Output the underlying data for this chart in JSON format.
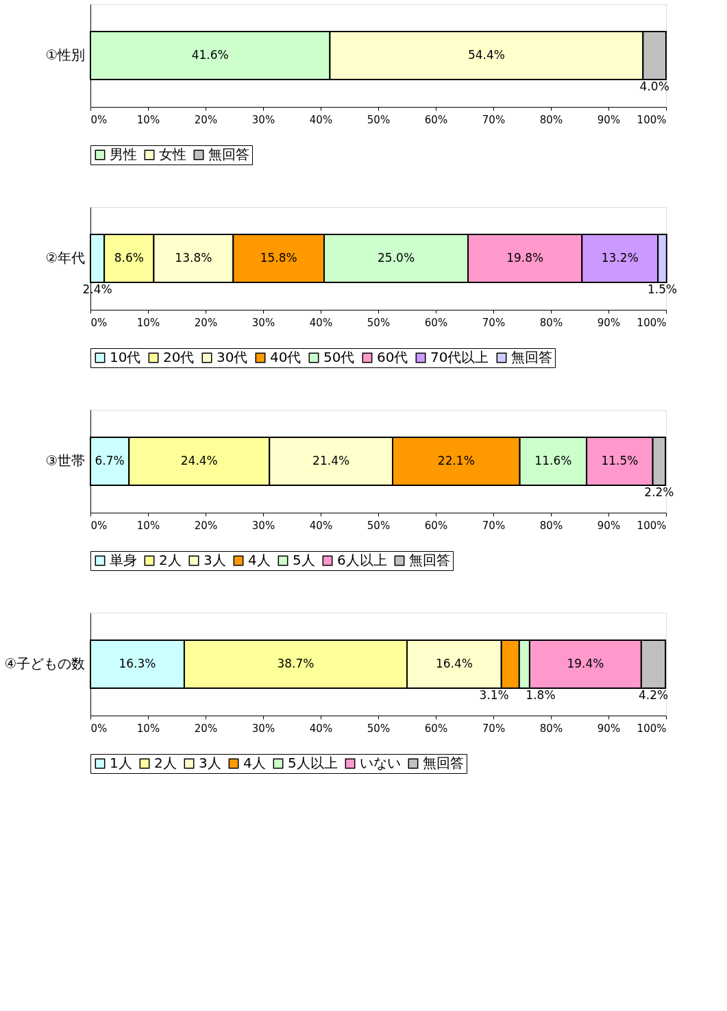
{
  "chart_data": [
    {
      "type": "bar",
      "orientation": "horizontal",
      "stacked": true,
      "categories": [
        "①性別"
      ],
      "xlim": [
        0,
        100
      ],
      "xticks": [
        {
          "value": 0,
          "label": "0%"
        },
        {
          "value": 10,
          "label": "10%"
        },
        {
          "value": 20,
          "label": "20%"
        },
        {
          "value": 30,
          "label": "30%"
        },
        {
          "value": 40,
          "label": "40%"
        },
        {
          "value": 50,
          "label": "50%"
        },
        {
          "value": 60,
          "label": "60%"
        },
        {
          "value": 70,
          "label": "70%"
        },
        {
          "value": 80,
          "label": "80%"
        },
        {
          "value": 90,
          "label": "90%"
        },
        {
          "value": 100,
          "label": "100%"
        }
      ],
      "legend": "bottom",
      "grid": false,
      "series": [
        {
          "name": "男性",
          "color": "#ccffcc",
          "values": [
            41.6
          ],
          "value_labels": [
            "41.6%"
          ]
        },
        {
          "name": "女性",
          "color": "#ffffcc",
          "values": [
            54.4
          ],
          "value_labels": [
            "54.4%"
          ]
        },
        {
          "name": "無回答",
          "color": "#c0c0c0",
          "values": [
            4.0
          ],
          "value_labels": [
            "4.0%"
          ]
        }
      ]
    },
    {
      "type": "bar",
      "orientation": "horizontal",
      "stacked": true,
      "categories": [
        "②年代"
      ],
      "xlim": [
        0,
        100
      ],
      "xticks": [
        {
          "value": 0,
          "label": "0%"
        },
        {
          "value": 10,
          "label": "10%"
        },
        {
          "value": 20,
          "label": "20%"
        },
        {
          "value": 30,
          "label": "30%"
        },
        {
          "value": 40,
          "label": "40%"
        },
        {
          "value": 50,
          "label": "50%"
        },
        {
          "value": 60,
          "label": "60%"
        },
        {
          "value": 70,
          "label": "70%"
        },
        {
          "value": 80,
          "label": "80%"
        },
        {
          "value": 90,
          "label": "90%"
        },
        {
          "value": 100,
          "label": "100%"
        }
      ],
      "legend": "bottom",
      "grid": false,
      "series": [
        {
          "name": "10代",
          "color": "#ccffff",
          "values": [
            2.4
          ],
          "value_labels": [
            "2.4%"
          ]
        },
        {
          "name": "20代",
          "color": "#ffff99",
          "values": [
            8.6
          ],
          "value_labels": [
            "8.6%"
          ]
        },
        {
          "name": "30代",
          "color": "#ffffcc",
          "values": [
            13.8
          ],
          "value_labels": [
            "13.8%"
          ]
        },
        {
          "name": "40代",
          "color": "#ff9900",
          "values": [
            15.8
          ],
          "value_labels": [
            "15.8%"
          ]
        },
        {
          "name": "50代",
          "color": "#ccffcc",
          "values": [
            25.0
          ],
          "value_labels": [
            "25.0%"
          ]
        },
        {
          "name": "60代",
          "color": "#ff99cc",
          "values": [
            19.8
          ],
          "value_labels": [
            "19.8%"
          ]
        },
        {
          "name": "70代以上",
          "color": "#cc99ff",
          "values": [
            13.2
          ],
          "value_labels": [
            "13.2%"
          ]
        },
        {
          "name": "無回答",
          "color": "#ccccff",
          "values": [
            1.5
          ],
          "value_labels": [
            "1.5%"
          ]
        }
      ]
    },
    {
      "type": "bar",
      "orientation": "horizontal",
      "stacked": true,
      "categories": [
        "③世帯"
      ],
      "xlim": [
        0,
        100
      ],
      "xticks": [
        {
          "value": 0,
          "label": "0%"
        },
        {
          "value": 10,
          "label": "10%"
        },
        {
          "value": 20,
          "label": "20%"
        },
        {
          "value": 30,
          "label": "30%"
        },
        {
          "value": 40,
          "label": "40%"
        },
        {
          "value": 50,
          "label": "50%"
        },
        {
          "value": 60,
          "label": "60%"
        },
        {
          "value": 70,
          "label": "70%"
        },
        {
          "value": 80,
          "label": "80%"
        },
        {
          "value": 90,
          "label": "90%"
        },
        {
          "value": 100,
          "label": "100%"
        }
      ],
      "legend": "bottom",
      "grid": false,
      "series": [
        {
          "name": "単身",
          "color": "#ccffff",
          "values": [
            6.7
          ],
          "value_labels": [
            "6.7%"
          ]
        },
        {
          "name": "2人",
          "color": "#ffff99",
          "values": [
            24.4
          ],
          "value_labels": [
            "24.4%"
          ]
        },
        {
          "name": "3人",
          "color": "#ffffcc",
          "values": [
            21.4
          ],
          "value_labels": [
            "21.4%"
          ]
        },
        {
          "name": "4人",
          "color": "#ff9900",
          "values": [
            22.1
          ],
          "value_labels": [
            "22.1%"
          ]
        },
        {
          "name": "5人",
          "color": "#ccffcc",
          "values": [
            11.6
          ],
          "value_labels": [
            "11.6%"
          ]
        },
        {
          "name": "6人以上",
          "color": "#ff99cc",
          "values": [
            11.5
          ],
          "value_labels": [
            "11.5%"
          ]
        },
        {
          "name": "無回答",
          "color": "#c0c0c0",
          "values": [
            2.2
          ],
          "value_labels": [
            "2.2%"
          ]
        }
      ]
    },
    {
      "type": "bar",
      "orientation": "horizontal",
      "stacked": true,
      "categories": [
        "④子どもの数"
      ],
      "xlim": [
        0,
        100
      ],
      "xticks": [
        {
          "value": 0,
          "label": "0%"
        },
        {
          "value": 10,
          "label": "10%"
        },
        {
          "value": 20,
          "label": "20%"
        },
        {
          "value": 30,
          "label": "30%"
        },
        {
          "value": 40,
          "label": "40%"
        },
        {
          "value": 50,
          "label": "50%"
        },
        {
          "value": 60,
          "label": "60%"
        },
        {
          "value": 70,
          "label": "70%"
        },
        {
          "value": 80,
          "label": "80%"
        },
        {
          "value": 90,
          "label": "90%"
        },
        {
          "value": 100,
          "label": "100%"
        }
      ],
      "legend": "bottom",
      "grid": false,
      "series": [
        {
          "name": "1人",
          "color": "#ccffff",
          "values": [
            16.3
          ],
          "value_labels": [
            "16.3%"
          ]
        },
        {
          "name": "2人",
          "color": "#ffff99",
          "values": [
            38.7
          ],
          "value_labels": [
            "38.7%"
          ]
        },
        {
          "name": "3人",
          "color": "#ffffcc",
          "values": [
            16.4
          ],
          "value_labels": [
            "16.4%"
          ]
        },
        {
          "name": "4人",
          "color": "#ff9900",
          "values": [
            3.1
          ],
          "value_labels": [
            "3.1%"
          ]
        },
        {
          "name": "5人以上",
          "color": "#ccffcc",
          "values": [
            1.8
          ],
          "value_labels": [
            "1.8%"
          ]
        },
        {
          "name": "いない",
          "color": "#ff99cc",
          "values": [
            19.4
          ],
          "value_labels": [
            "19.4%"
          ]
        },
        {
          "name": "無回答",
          "color": "#c0c0c0",
          "values": [
            4.2
          ],
          "value_labels": [
            "4.2%"
          ]
        }
      ]
    }
  ]
}
